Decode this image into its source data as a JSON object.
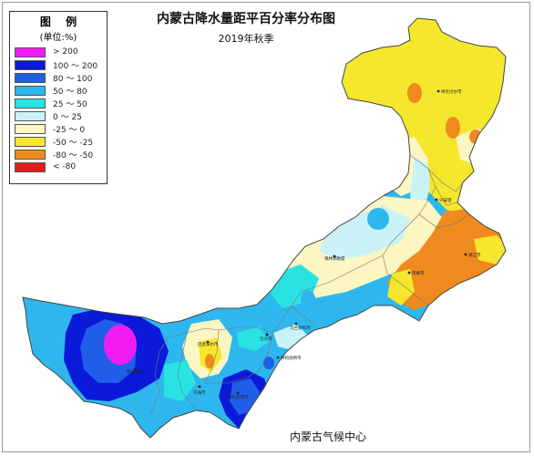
{
  "title": "内蒙古降水量距平百分率分布图",
  "subtitle": "2019年秋季",
  "source": "内蒙古气候中心",
  "legend": {
    "title": "图 例",
    "unit": "(单位:%)",
    "items": [
      {
        "label": "> 200",
        "color": "#f21cf2"
      },
      {
        "label": "100 ～ 200",
        "color": "#0b1ad8"
      },
      {
        "label": "80 ～ 100",
        "color": "#1f5fe8"
      },
      {
        "label": "50 ～ 80",
        "color": "#2eb7ee"
      },
      {
        "label": "25 ～ 50",
        "color": "#29e3e3"
      },
      {
        "label": "0 ～ 25",
        "color": "#c9f3f6"
      },
      {
        "label": "-25 ～ 0",
        "color": "#fbf6c2"
      },
      {
        "label": "-50 ～ -25",
        "color": "#f5e72c"
      },
      {
        "label": "-80 ～ -50",
        "color": "#ef8a1f"
      },
      {
        "label": "< -80",
        "color": "#e51a1a"
      }
    ]
  },
  "cities": [
    {
      "id": "hulunbuir",
      "name": "呼伦贝尔市"
    },
    {
      "id": "xinganmeng",
      "name": "兴安盟"
    },
    {
      "id": "tongliao",
      "name": "通辽市"
    },
    {
      "id": "chifeng",
      "name": "赤峰市"
    },
    {
      "id": "xilingol",
      "name": "锡林郭勒盟"
    },
    {
      "id": "ulanqab",
      "name": "乌兰察布市"
    },
    {
      "id": "hohhot",
      "name": "呼和浩特市"
    },
    {
      "id": "baotou",
      "name": "包头市"
    },
    {
      "id": "bayannur",
      "name": "巴彦淖尔市"
    },
    {
      "id": "wuhai",
      "name": "乌海市"
    },
    {
      "id": "ordos",
      "name": "鄂尔多斯市"
    },
    {
      "id": "alxa",
      "name": "阿拉善盟"
    }
  ]
}
